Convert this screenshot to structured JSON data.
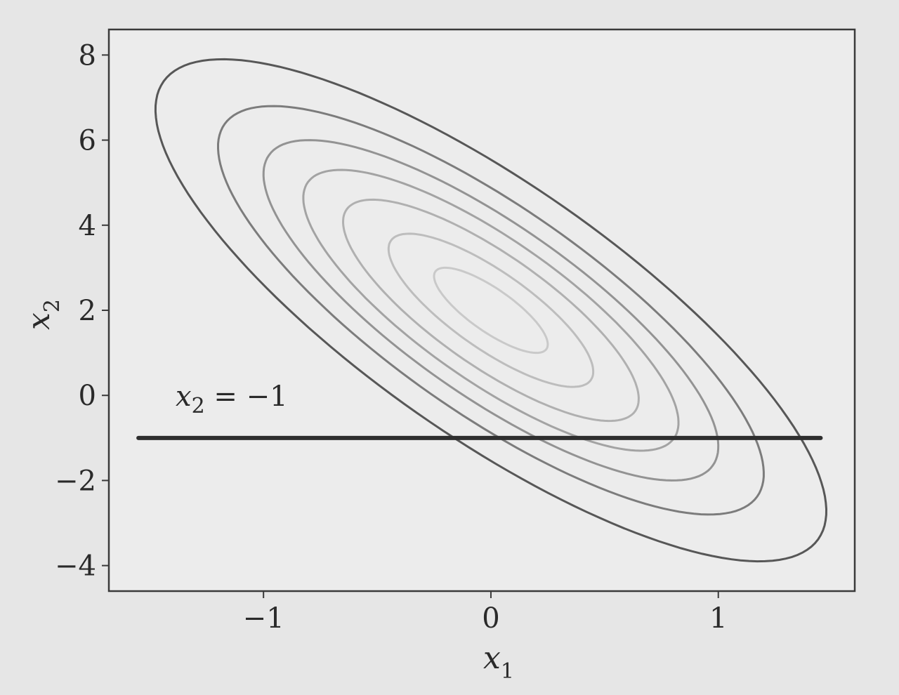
{
  "chart_data": {
    "type": "contour",
    "xlabel": "x",
    "xlabel_sub": "1",
    "ylabel": "x",
    "ylabel_sub": "2",
    "xlim": [
      -1.68,
      1.6
    ],
    "ylim": [
      -4.6,
      8.6
    ],
    "xticks": [
      -1,
      0,
      1
    ],
    "xtick_labels": [
      "−1",
      "0",
      "1"
    ],
    "yticks": [
      8,
      6,
      4,
      2,
      0,
      -2,
      -4
    ],
    "ytick_labels": [
      "8",
      "6",
      "4",
      "2",
      "0",
      "−2",
      "−4"
    ],
    "grid": false,
    "contours": {
      "center": [
        0.0,
        2.0
      ],
      "covariance": [
        [
          0.25,
          -0.8
        ],
        [
          -0.8,
          4.0
        ]
      ],
      "mahalanobis_levels": [
        0.5,
        0.9,
        1.3,
        1.65,
        2.0,
        2.4,
        2.95
      ],
      "colors": [
        "#c9c9c9",
        "#bdbdbd",
        "#b0b0b0",
        "#a3a3a3",
        "#939393",
        "#7c7c7c",
        "#575757"
      ]
    },
    "line": {
      "label_prefix": "x",
      "label_sub": "2",
      "label_suffix": " = −1",
      "x": [
        -1.55,
        1.45
      ],
      "y": [
        -1.0,
        -1.0
      ],
      "color": "#2e2e2e"
    }
  }
}
